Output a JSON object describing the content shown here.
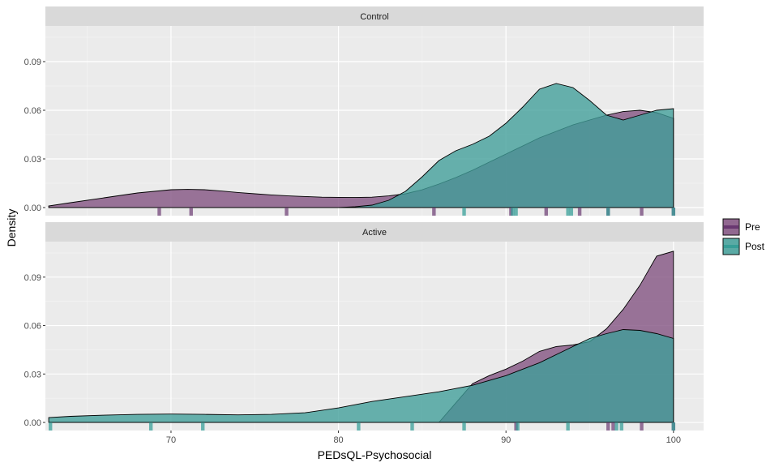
{
  "chart_data": {
    "type": "density",
    "xlabel": "PEDsQL-Psychosocial",
    "ylabel": "Density",
    "xlim": [
      62.5,
      101.8
    ],
    "ylim": [
      -0.005,
      0.112
    ],
    "x_ticks": [
      70,
      80,
      90,
      100
    ],
    "y_ticks": [
      0.0,
      0.03,
      0.06,
      0.09
    ],
    "y_tick_labels": [
      "0.00",
      "0.03",
      "0.06",
      "0.09"
    ],
    "grid": true,
    "legend": {
      "position": "right",
      "entries": [
        {
          "label": "Pre",
          "color": "#5e2a68"
        },
        {
          "label": "Post",
          "color": "#2e9b94"
        }
      ]
    },
    "colors": {
      "Pre": "#80507f",
      "Post": "#3f9e98",
      "overlap": "#4f6f84"
    },
    "panels": [
      {
        "name": "Control",
        "series": [
          {
            "name": "Pre",
            "x": [
              62.7,
              64,
              66,
              68,
              69,
              70,
              71,
              72,
              73,
              74,
              75,
              76,
              77,
              78,
              79,
              80,
              81,
              82,
              83,
              84,
              85,
              86,
              87,
              88,
              89,
              90,
              91,
              92,
              93,
              94,
              95,
              96,
              97,
              98,
              99,
              100
            ],
            "y": [
              0.001,
              0.003,
              0.006,
              0.009,
              0.01,
              0.011,
              0.0112,
              0.011,
              0.0102,
              0.0093,
              0.0085,
              0.0078,
              0.0072,
              0.0068,
              0.0064,
              0.0063,
              0.0062,
              0.0064,
              0.0072,
              0.0085,
              0.011,
              0.0145,
              0.0185,
              0.023,
              0.028,
              0.033,
              0.038,
              0.043,
              0.047,
              0.051,
              0.054,
              0.057,
              0.0592,
              0.06,
              0.0585,
              0.055
            ]
          },
          {
            "name": "Post",
            "x": [
              80,
              81,
              82,
              83,
              84,
              85,
              86,
              87,
              88,
              89,
              90,
              91,
              92,
              93,
              94,
              95,
              96,
              97,
              98,
              99,
              100
            ],
            "y": [
              0.0,
              0.0005,
              0.0015,
              0.0045,
              0.01,
              0.019,
              0.029,
              0.035,
              0.039,
              0.044,
              0.052,
              0.062,
              0.073,
              0.0765,
              0.074,
              0.066,
              0.057,
              0.054,
              0.057,
              0.06,
              0.061
            ]
          }
        ],
        "rug": {
          "Pre": [
            69.3,
            71.2,
            76.9,
            85.7,
            90.3,
            92.4,
            94.4,
            96.1,
            98.1,
            100
          ],
          "Post": [
            87.5,
            90.4,
            90.6,
            93.7,
            93.9,
            96.1,
            100
          ]
        }
      },
      {
        "name": "Active",
        "series": [
          {
            "name": "Pre",
            "x": [
              86,
              87,
              88,
              89,
              90,
              91,
              92,
              93,
              94,
              95,
              96,
              97,
              98,
              99,
              100
            ],
            "y": [
              0.0,
              0.012,
              0.024,
              0.029,
              0.033,
              0.038,
              0.044,
              0.047,
              0.048,
              0.05,
              0.058,
              0.07,
              0.085,
              0.103,
              0.106
            ]
          },
          {
            "name": "Post",
            "x": [
              62.7,
              64,
              66,
              68,
              70,
              72,
              74,
              76,
              78,
              80,
              82,
              84,
              86,
              88,
              90,
              92,
              94,
              95,
              96,
              97,
              98,
              99,
              100
            ],
            "y": [
              0.003,
              0.0038,
              0.0045,
              0.005,
              0.0052,
              0.005,
              0.0047,
              0.005,
              0.006,
              0.009,
              0.013,
              0.016,
              0.019,
              0.023,
              0.029,
              0.037,
              0.047,
              0.052,
              0.055,
              0.0575,
              0.057,
              0.055,
              0.052
            ]
          }
        ],
        "rug": {
          "Pre": [
            90.6,
            96.1,
            96.4,
            98.1,
            100
          ],
          "Post": [
            62.8,
            68.8,
            71.9,
            81.2,
            84.4,
            87.5,
            90.7,
            93.7,
            96.6,
            96.9,
            100
          ]
        }
      }
    ]
  }
}
